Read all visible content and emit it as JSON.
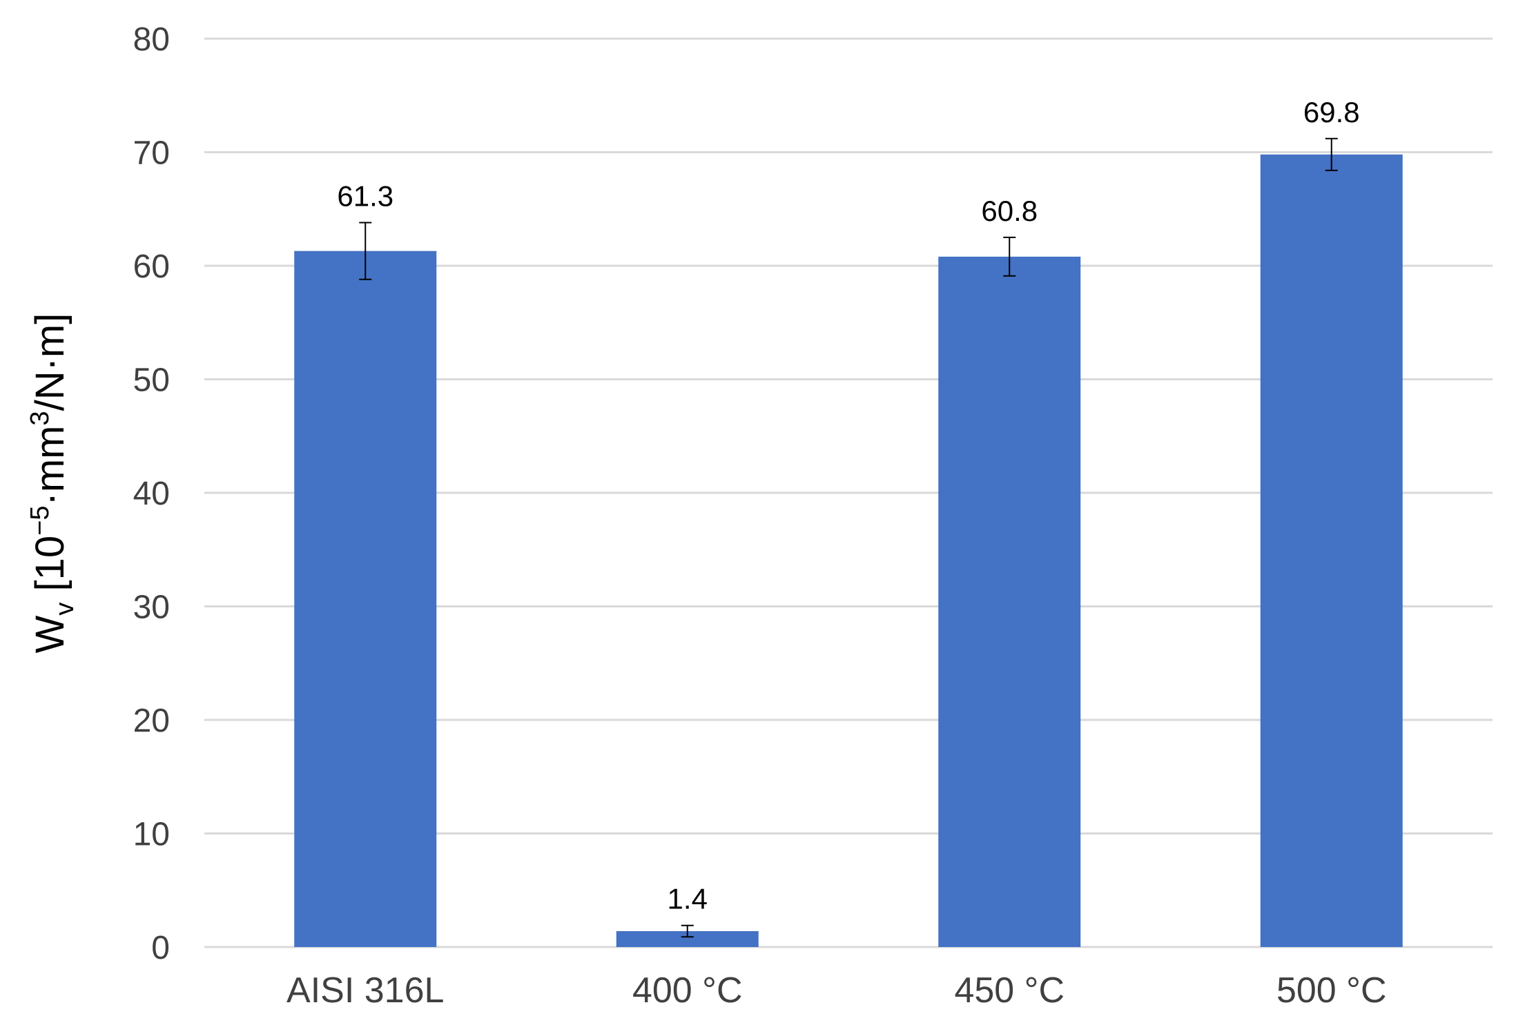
{
  "chart_data": {
    "type": "bar",
    "categories": [
      "AISI 316L",
      "400 °C",
      "450 °C",
      "500 °C"
    ],
    "values": [
      61.3,
      1.4,
      60.8,
      69.8
    ],
    "error_low": [
      58.8,
      0.9,
      59.1,
      68.4
    ],
    "error_high": [
      63.8,
      1.9,
      62.5,
      71.2
    ],
    "data_labels": [
      "61.3",
      "1.4",
      "60.8",
      "69.8"
    ],
    "ylim": [
      0,
      80
    ],
    "yticks": [
      0,
      10,
      20,
      30,
      40,
      50,
      60,
      70,
      80
    ],
    "ytick_labels": [
      "0",
      "10",
      "20",
      "30",
      "40",
      "50",
      "60",
      "70",
      "80"
    ],
    "ylabel": {
      "main": "W",
      "sub": "v",
      "bracket_open": " [10",
      "exp": "−5",
      "mid": "·mm",
      "exp2": "3",
      "tail": "/N·m]"
    },
    "xlabel": "",
    "grid": true,
    "bar_color": "#4472C4",
    "grid_color": "#d9d9d9",
    "error_bar_color": "#000000"
  }
}
